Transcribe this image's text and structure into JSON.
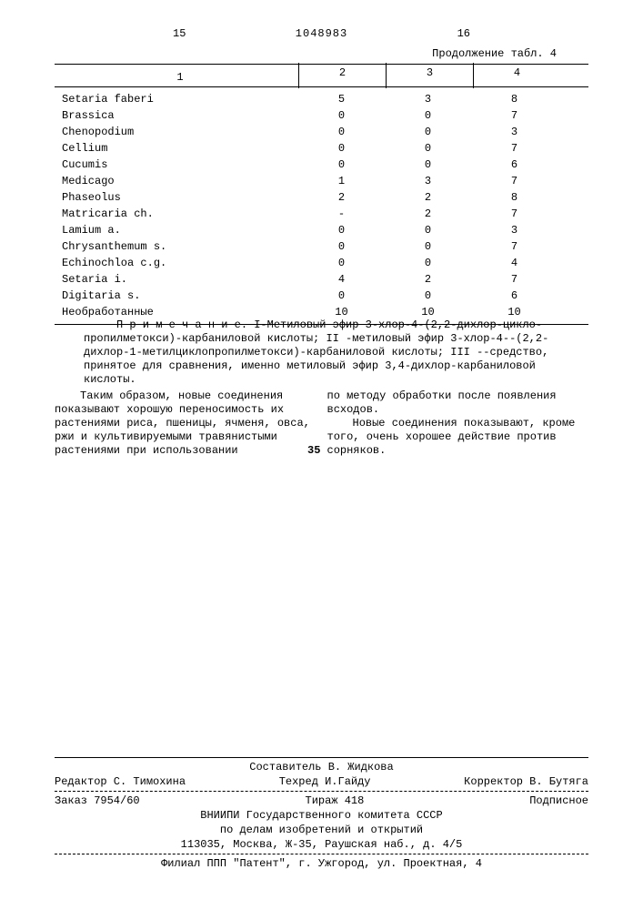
{
  "header": {
    "left_page": "15",
    "doc_number": "1048983",
    "right_page": "16"
  },
  "table": {
    "continuation": "Продолжение табл. 4",
    "columns": [
      "1",
      "2",
      "3",
      "4"
    ],
    "rows": [
      {
        "name": "Setaria faberi",
        "c2": "5",
        "c3": "3",
        "c4": "8"
      },
      {
        "name": "Brassica",
        "c2": "0",
        "c3": "0",
        "c4": "7"
      },
      {
        "name": "Chenopodium",
        "c2": "0",
        "c3": "0",
        "c4": "3"
      },
      {
        "name": "Cellium",
        "c2": "0",
        "c3": "0",
        "c4": "7"
      },
      {
        "name": "Cucumis",
        "c2": "0",
        "c3": "0",
        "c4": "6"
      },
      {
        "name": "Medicago",
        "c2": "1",
        "c3": "3",
        "c4": "7"
      },
      {
        "name": "Phaseolus",
        "c2": "2",
        "c3": "2",
        "c4": "8"
      },
      {
        "name": "Matricaria ch.",
        "c2": "-",
        "c3": "2",
        "c4": "7"
      },
      {
        "name": "Lamium a.",
        "c2": "0",
        "c3": "0",
        "c4": "3"
      },
      {
        "name": "Chrysanthemum s.",
        "c2": "0",
        "c3": "0",
        "c4": "7"
      },
      {
        "name": "Echinochloa c.g.",
        "c2": "0",
        "c3": "0",
        "c4": "4"
      },
      {
        "name": "Setaria i.",
        "c2": "4",
        "c3": "2",
        "c4": "7"
      },
      {
        "name": "Digitaria s.",
        "c2": "0",
        "c3": "0",
        "c4": "6"
      },
      {
        "name": "Необработанные",
        "c2": "10",
        "c3": "10",
        "c4": "10"
      }
    ]
  },
  "note": "П р и м е ч а н и е. I-Метиловый эфир 3-хлор-4-(2,2-дихлор-цикло-пропилметокси)-карбаниловой кислоты; II -метиловый эфир 3-хлор-4--(2,2-дихлор-1-метилциклопропилметокси)-карбаниловой кислоты; III --средство, принятое для сравнения, именно метиловый эфир 3,4-дихлор-карбаниловой кислоты.",
  "bodyL": {
    "p1": "Таким образом, новые соединения показывают хорошую переносимость их растениями риса, пшеницы, ячменя, овса, ржи и культивируемыми травянистыми растениями при использовании"
  },
  "bodyR": {
    "p1": "по методу обработки после появления всходов.",
    "p2": "Новые соединения показывают, кроме того, очень хорошее действие против сорняков."
  },
  "line_marker": "35",
  "footer": {
    "composer": "Составитель В. Жидкова",
    "editor": "Редактор С. Тимохина",
    "techred": "Техред И.Гайду",
    "corrector": "Корректор В. Бутяга",
    "order": "Заказ 7954/60",
    "tirazh": "Тираж 418",
    "podpis": "Подписное",
    "org1": "ВНИИПИ Государственного комитета СССР",
    "org2": "по делам изобретений и открытий",
    "addr": "113035, Москва, Ж-35, Раушская наб., д. 4/5",
    "filial": "Филиал ППП \"Патент\", г. Ужгород, ул. Проектная, 4"
  }
}
